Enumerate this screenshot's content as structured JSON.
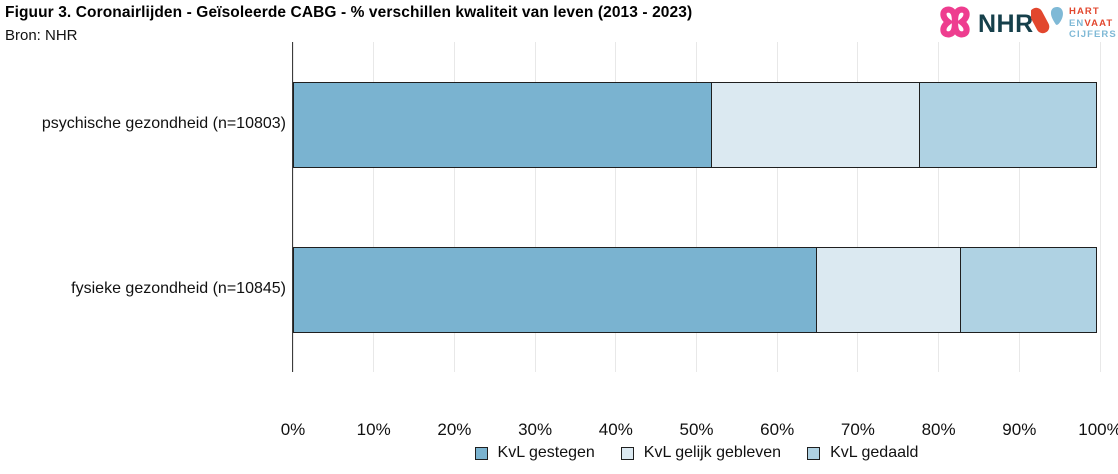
{
  "header": {
    "title": "Figuur 3. Coronairlijden - Geïsoleerde CABG - % verschillen kwaliteit van leven (2013 - 2023)",
    "source": "Bron: NHR"
  },
  "logos": {
    "nhr_label": "NHR",
    "hartenvaat": {
      "line1": "HART",
      "line2_part1": "EN",
      "line2_part2": "VAAT",
      "line3": "CIJFERS"
    }
  },
  "chart_data": {
    "type": "bar",
    "orientation": "horizontal-stacked",
    "title": "Figuur 3. Coronairlijden - Geïsoleerde CABG - % verschillen kwaliteit van leven (2013 - 2023)",
    "categories": [
      "psychische gezondheid (n=10803)",
      "fysieke gezondheid (n=10845)"
    ],
    "series": [
      {
        "name": "KvL gestegen",
        "color": "#7ab3d0",
        "values": [
          52,
          65
        ]
      },
      {
        "name": "KvL gelijk gebleven",
        "color": "#dbe9f1",
        "values": [
          26,
          18
        ]
      },
      {
        "name": "KvL gedaald",
        "color": "#afd2e3",
        "values": [
          22,
          17
        ]
      }
    ],
    "xlim": [
      0,
      100
    ],
    "xticks": [
      "0%",
      "10%",
      "20%",
      "30%",
      "40%",
      "50%",
      "60%",
      "70%",
      "80%",
      "90%",
      "100%"
    ],
    "grid": true,
    "legend_position": "bottom"
  },
  "colors": {
    "bar_border": "#1f1f1f",
    "gridline": "#e8e8e8",
    "axis_line": "#3c3c3c",
    "nhr_pink": "#ee3d8f",
    "nhr_teal": "#16404b",
    "hv_red": "#e2472e",
    "hv_blue": "#7fb9d6"
  }
}
